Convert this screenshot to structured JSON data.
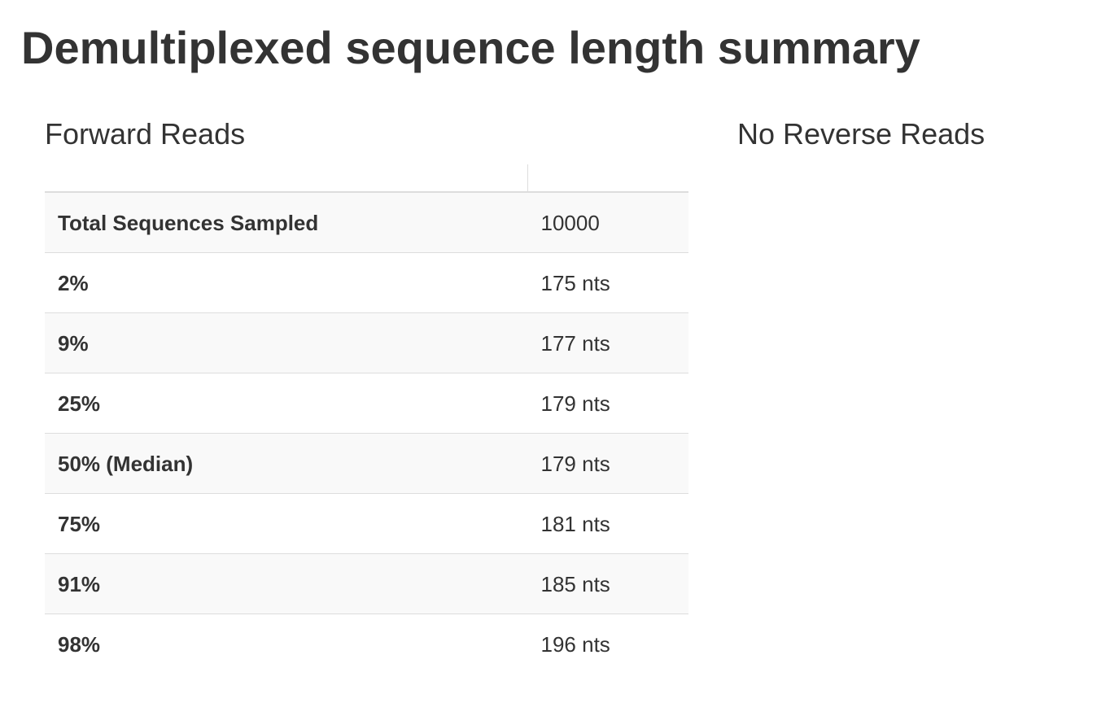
{
  "page_title": "Demultiplexed sequence length summary",
  "forward": {
    "heading": "Forward Reads",
    "rows": [
      {
        "label": "Total Sequences Sampled",
        "value": "10000"
      },
      {
        "label": "2%",
        "value": "175 nts"
      },
      {
        "label": "9%",
        "value": "177 nts"
      },
      {
        "label": "25%",
        "value": "179 nts"
      },
      {
        "label": "50% (Median)",
        "value": "179 nts"
      },
      {
        "label": "75%",
        "value": "181 nts"
      },
      {
        "label": "91%",
        "value": "185 nts"
      },
      {
        "label": "98%",
        "value": "196 nts"
      }
    ]
  },
  "reverse": {
    "heading": "No Reverse Reads"
  }
}
